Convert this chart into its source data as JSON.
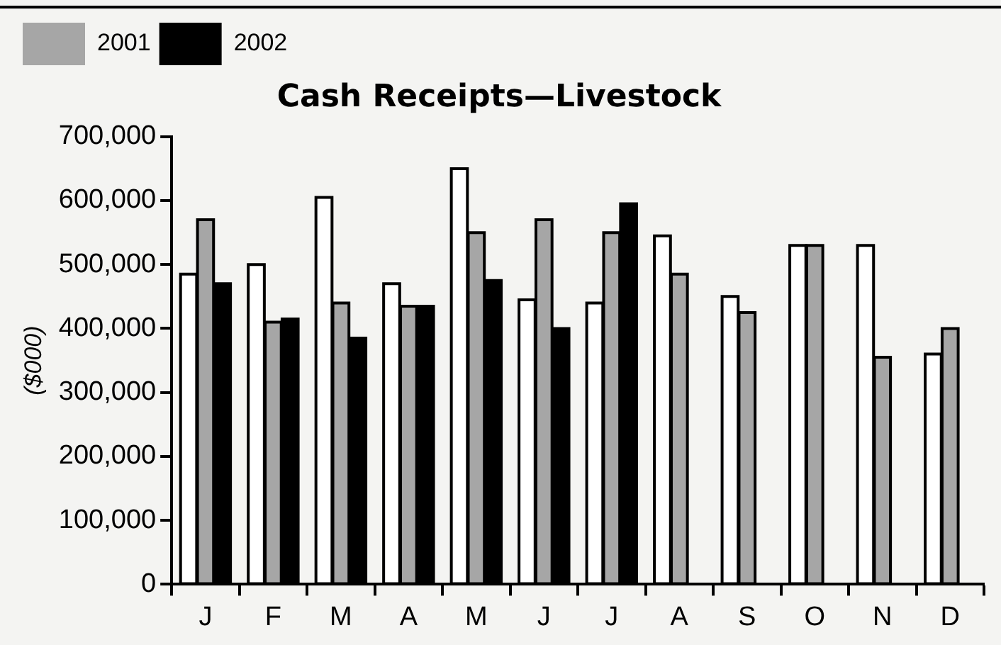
{
  "chart_data": {
    "type": "bar",
    "title": "Cash Receipts—Livestock",
    "ylabel": "($000)",
    "categories": [
      "J",
      "F",
      "M",
      "A",
      "M",
      "J",
      "J",
      "A",
      "S",
      "O",
      "N",
      "D"
    ],
    "series": [
      {
        "color": "#ffffff",
        "values": [
          485000,
          500000,
          605000,
          470000,
          650000,
          445000,
          440000,
          545000,
          450000,
          530000,
          530000,
          360000
        ]
      },
      {
        "name": "2001",
        "color": "#a6a6a6",
        "values": [
          570000,
          410000,
          440000,
          435000,
          550000,
          570000,
          550000,
          485000,
          425000,
          530000,
          355000,
          400000
        ]
      },
      {
        "name": "2002",
        "color": "#000000",
        "values": [
          470000,
          415000,
          385000,
          435000,
          475000,
          400000,
          595000,
          null,
          null,
          null,
          null,
          null
        ]
      }
    ],
    "ylim": [
      0,
      700000
    ],
    "yticks": [
      0,
      {
        "value": 100000,
        "label": "100,000"
      },
      {
        "value": 200000,
        "label": "200,000"
      },
      {
        "value": 300000,
        "label": "300,000"
      },
      {
        "value": 400000,
        "label": "400,000"
      },
      {
        "value": 500000,
        "label": "500,000"
      },
      {
        "value": 600000,
        "label": "600,000"
      },
      {
        "value": 700000,
        "label": "700,000"
      }
    ],
    "grid": false,
    "legend": "top left"
  }
}
